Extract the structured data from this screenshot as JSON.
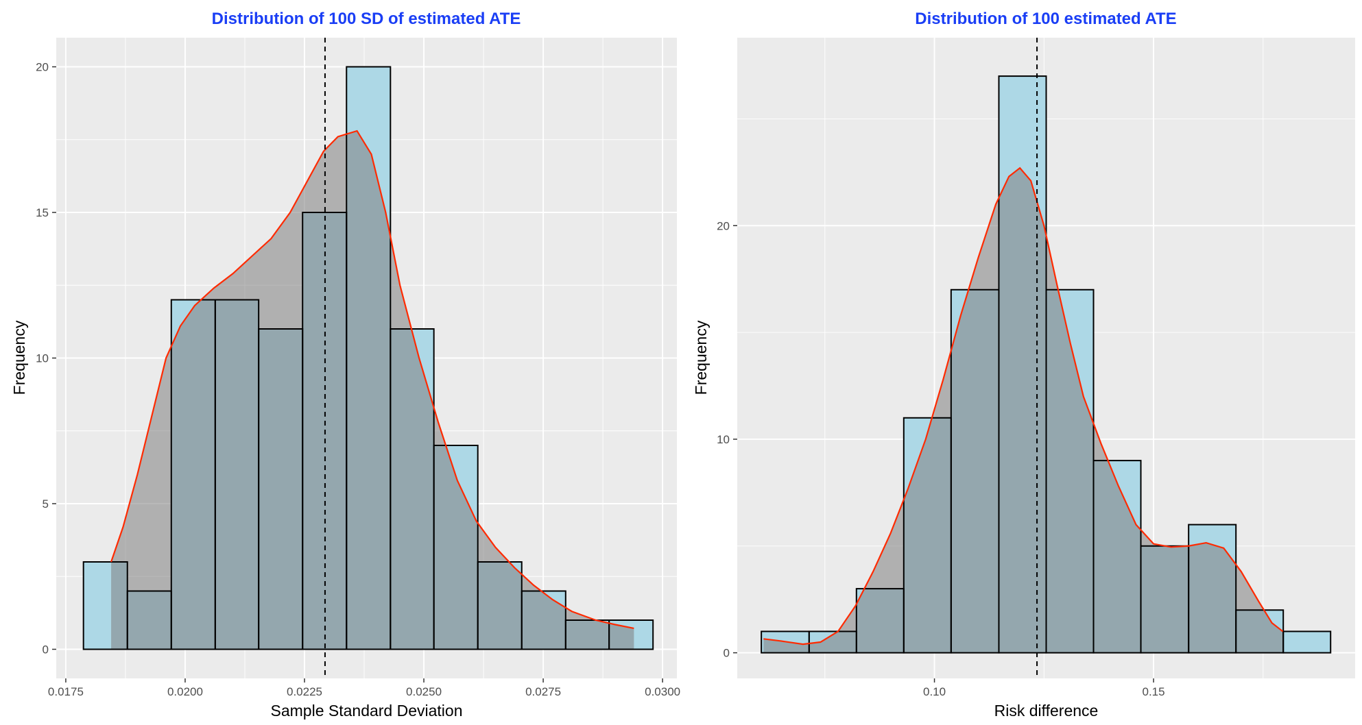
{
  "colors": {
    "title": "#1a3ef5",
    "panel_bg": "#ebebeb",
    "grid": "#ffffff",
    "bar_fill": "#add8e6",
    "bar_stroke": "#000000",
    "density_fill": "#808080",
    "density_line": "#ff2a00",
    "ref_line": "#000000",
    "tick_text": "#4d4d4d"
  },
  "chart_data": [
    {
      "type": "histogram",
      "title": "Distribution of 100 SD of estimated ATE",
      "xlabel": "Sample Standard Deviation",
      "ylabel": "Frequency",
      "xlim": [
        0.0173,
        0.0303
      ],
      "ylim": [
        -1,
        21
      ],
      "x_ticks": [
        0.0175,
        0.02,
        0.0225,
        0.025,
        0.0275,
        0.03
      ],
      "x_tick_labels": [
        "0.0175",
        "0.0200",
        "0.0225",
        "0.0250",
        "0.0275",
        "0.0300"
      ],
      "x_minor_ticks": [
        0.01875,
        0.02125,
        0.02375,
        0.02625,
        0.02875
      ],
      "y_ticks": [
        0,
        5,
        10,
        15,
        20
      ],
      "y_tick_labels": [
        "0",
        "5",
        "10",
        "15",
        "20"
      ],
      "y_minor_ticks": [
        2.5,
        7.5,
        12.5,
        17.5
      ],
      "bins": [
        {
          "x0": 0.01787,
          "x1": 0.01879,
          "count": 3
        },
        {
          "x0": 0.01879,
          "x1": 0.01971,
          "count": 2
        },
        {
          "x0": 0.01971,
          "x1": 0.02063,
          "count": 12
        },
        {
          "x0": 0.02063,
          "x1": 0.02154,
          "count": 12
        },
        {
          "x0": 0.02154,
          "x1": 0.02246,
          "count": 11
        },
        {
          "x0": 0.02246,
          "x1": 0.02338,
          "count": 15
        },
        {
          "x0": 0.02338,
          "x1": 0.0243,
          "count": 20
        },
        {
          "x0": 0.0243,
          "x1": 0.02521,
          "count": 11
        },
        {
          "x0": 0.02521,
          "x1": 0.02613,
          "count": 7
        },
        {
          "x0": 0.02613,
          "x1": 0.02705,
          "count": 3
        },
        {
          "x0": 0.02705,
          "x1": 0.02797,
          "count": 2
        },
        {
          "x0": 0.02797,
          "x1": 0.02888,
          "count": 1
        },
        {
          "x0": 0.02888,
          "x1": 0.0298,
          "count": 1
        }
      ],
      "vline": 0.02293,
      "density": [
        [
          0.01845,
          3.0
        ],
        [
          0.0187,
          4.2
        ],
        [
          0.019,
          6.0
        ],
        [
          0.0193,
          8.0
        ],
        [
          0.0196,
          10.0
        ],
        [
          0.0199,
          11.1
        ],
        [
          0.0202,
          11.8
        ],
        [
          0.0206,
          12.4
        ],
        [
          0.021,
          12.9
        ],
        [
          0.0214,
          13.5
        ],
        [
          0.0218,
          14.1
        ],
        [
          0.0222,
          15.0
        ],
        [
          0.0226,
          16.2
        ],
        [
          0.0229,
          17.1
        ],
        [
          0.0232,
          17.6
        ],
        [
          0.0236,
          17.8
        ],
        [
          0.0239,
          17.0
        ],
        [
          0.0242,
          15.0
        ],
        [
          0.0245,
          12.5
        ],
        [
          0.0249,
          10.0
        ],
        [
          0.0253,
          7.8
        ],
        [
          0.0257,
          5.8
        ],
        [
          0.0261,
          4.4
        ],
        [
          0.0265,
          3.5
        ],
        [
          0.0269,
          2.8
        ],
        [
          0.0273,
          2.2
        ],
        [
          0.0277,
          1.7
        ],
        [
          0.0281,
          1.3
        ],
        [
          0.0286,
          1.0
        ],
        [
          0.029,
          0.85
        ],
        [
          0.0294,
          0.72
        ]
      ]
    },
    {
      "type": "histogram",
      "title": "Distribution of 100 estimated ATE",
      "xlabel": "Risk difference",
      "ylabel": "Frequency",
      "xlim": [
        0.055,
        0.196
      ],
      "ylim": [
        -1.2,
        28.8
      ],
      "x_ticks": [
        0.1,
        0.15
      ],
      "x_tick_labels": [
        "0.10",
        "0.15"
      ],
      "x_minor_ticks": [
        0.075,
        0.125,
        0.175
      ],
      "y_ticks": [
        0,
        10,
        20
      ],
      "y_tick_labels": [
        "0",
        "10",
        "20"
      ],
      "y_minor_ticks": [
        5,
        15,
        25
      ],
      "bins": [
        {
          "x0": 0.0605,
          "x1": 0.0714,
          "count": 1
        },
        {
          "x0": 0.0714,
          "x1": 0.0822,
          "count": 1
        },
        {
          "x0": 0.0822,
          "x1": 0.093,
          "count": 3
        },
        {
          "x0": 0.093,
          "x1": 0.1038,
          "count": 11
        },
        {
          "x0": 0.1038,
          "x1": 0.1147,
          "count": 17
        },
        {
          "x0": 0.1147,
          "x1": 0.1255,
          "count": 27
        },
        {
          "x0": 0.1255,
          "x1": 0.1363,
          "count": 17
        },
        {
          "x0": 0.1363,
          "x1": 0.1471,
          "count": 9
        },
        {
          "x0": 0.1471,
          "x1": 0.158,
          "count": 5
        },
        {
          "x0": 0.158,
          "x1": 0.1688,
          "count": 6
        },
        {
          "x0": 0.1688,
          "x1": 0.1796,
          "count": 2
        },
        {
          "x0": 0.1796,
          "x1": 0.1904,
          "count": 1
        }
      ],
      "vline": 0.1234,
      "density": [
        [
          0.061,
          0.65
        ],
        [
          0.065,
          0.55
        ],
        [
          0.07,
          0.4
        ],
        [
          0.074,
          0.5
        ],
        [
          0.078,
          1.0
        ],
        [
          0.082,
          2.2
        ],
        [
          0.086,
          3.8
        ],
        [
          0.09,
          5.6
        ],
        [
          0.094,
          7.7
        ],
        [
          0.098,
          10.0
        ],
        [
          0.102,
          12.8
        ],
        [
          0.106,
          15.8
        ],
        [
          0.11,
          18.5
        ],
        [
          0.114,
          21.0
        ],
        [
          0.117,
          22.3
        ],
        [
          0.1195,
          22.7
        ],
        [
          0.122,
          22.1
        ],
        [
          0.125,
          20.0
        ],
        [
          0.128,
          17.2
        ],
        [
          0.131,
          14.5
        ],
        [
          0.134,
          12.0
        ],
        [
          0.138,
          9.8
        ],
        [
          0.142,
          7.8
        ],
        [
          0.146,
          6.0
        ],
        [
          0.15,
          5.1
        ],
        [
          0.154,
          4.95
        ],
        [
          0.158,
          5.0
        ],
        [
          0.162,
          5.15
        ],
        [
          0.166,
          4.9
        ],
        [
          0.17,
          3.8
        ],
        [
          0.174,
          2.4
        ],
        [
          0.177,
          1.4
        ],
        [
          0.1795,
          1.0
        ]
      ]
    }
  ]
}
